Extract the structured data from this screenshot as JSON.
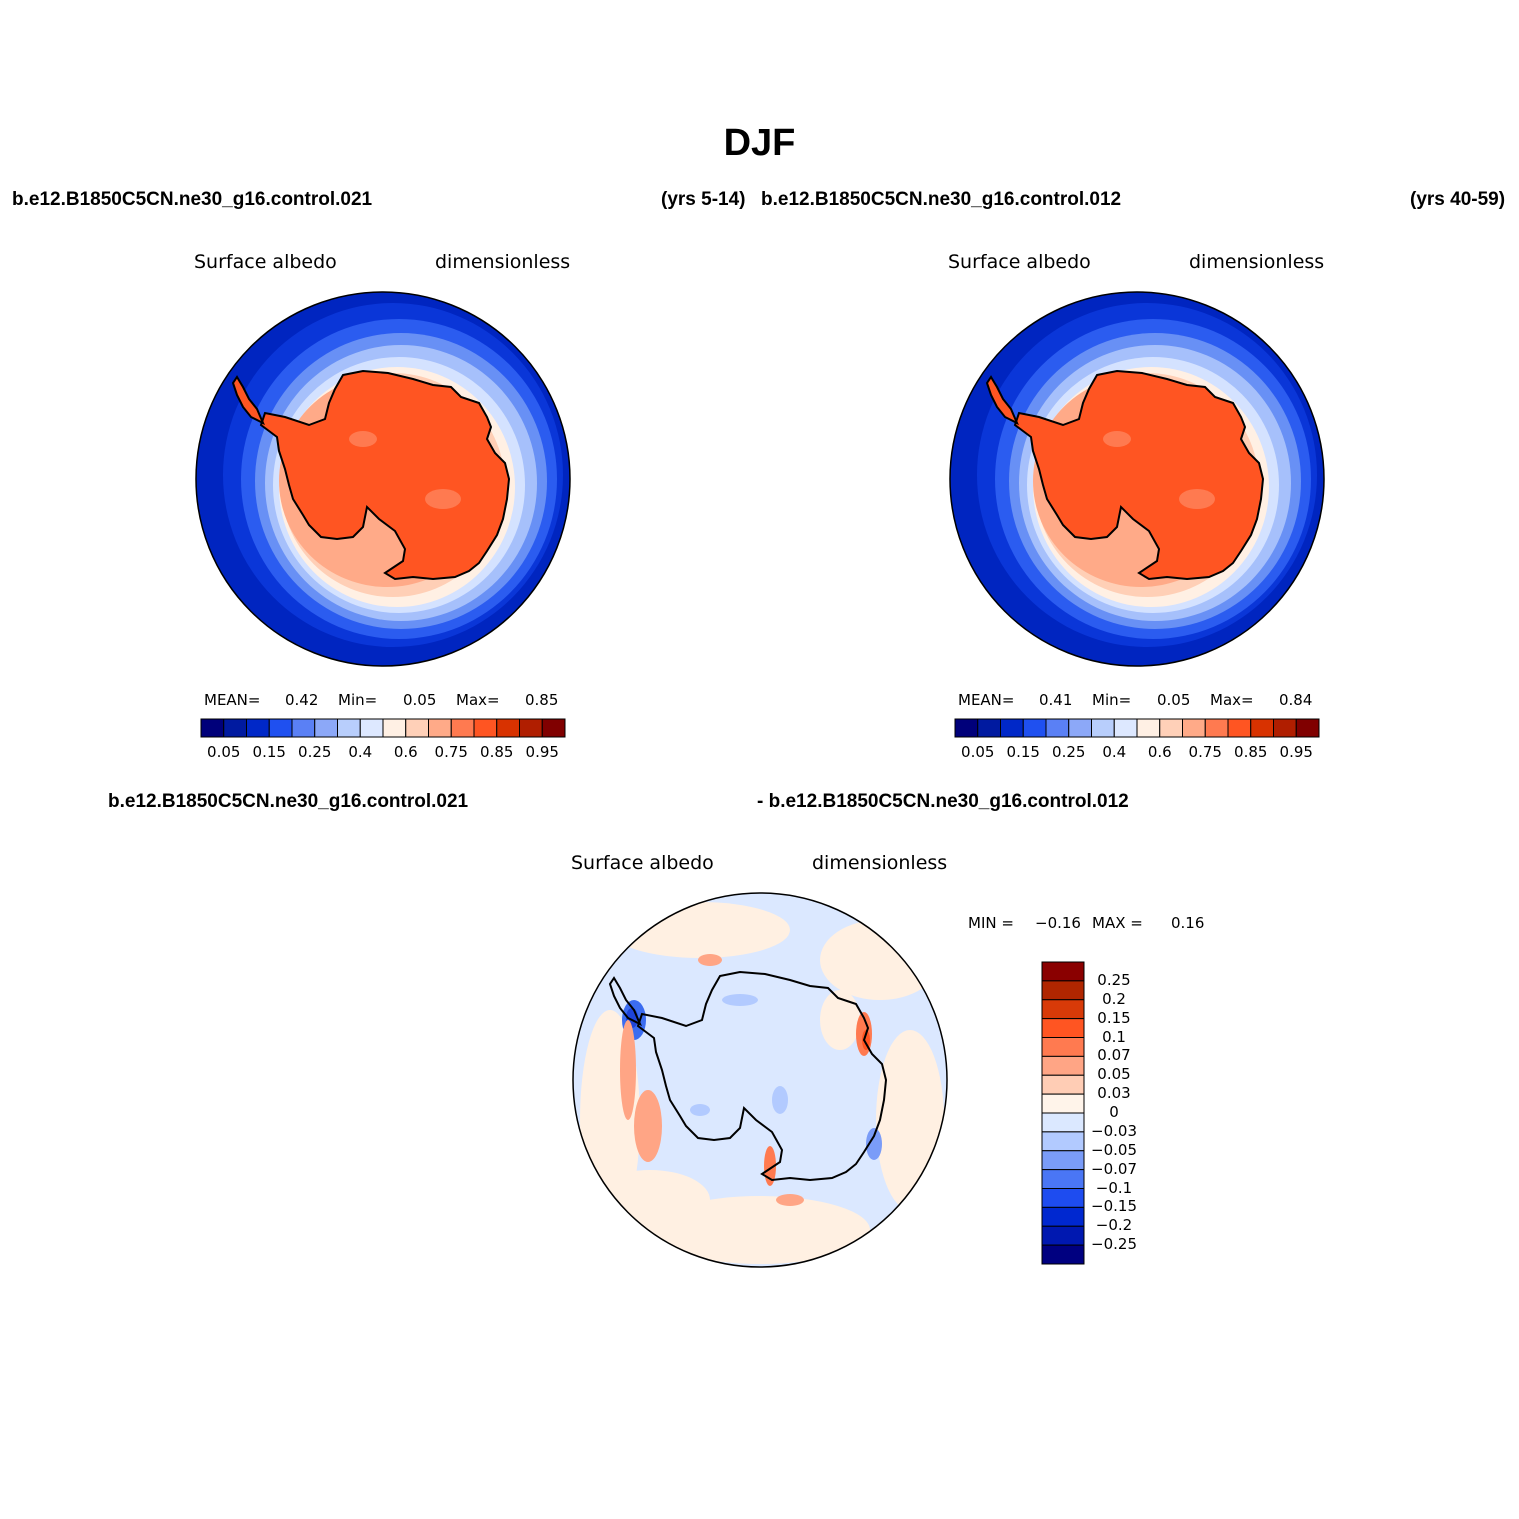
{
  "figure": {
    "title": "DJF",
    "top_left_case": "b.e12.B1850C5CN.ne30_g16.control.021",
    "top_left_years": "(yrs 5-14)",
    "top_right_case": "b.e12.B1850C5CN.ne30_g16.control.012",
    "top_right_years": "(yrs 40-59)",
    "diff_case_a": "b.e12.B1850C5CN.ne30_g16.control.021",
    "diff_case_b": "- b.e12.B1850C5CN.ne30_g16.control.012"
  },
  "panels": [
    {
      "variable": "Surface albedo",
      "units": "dimensionless",
      "mean_label": "MEAN=",
      "mean": "0.42",
      "min_label": "Min=",
      "min": "0.05",
      "max_label": "Max=",
      "max": "0.85"
    },
    {
      "variable": "Surface albedo",
      "units": "dimensionless",
      "mean_label": "MEAN=",
      "mean": "0.41",
      "min_label": "Min=",
      "min": "0.05",
      "max_label": "Max=",
      "max": "0.84"
    },
    {
      "variable": "Surface albedo",
      "units": "dimensionless",
      "min_label": "MIN =",
      "min": "−0.16",
      "max_label": "MAX =",
      "max": "0.16"
    }
  ],
  "colorbar_abs": {
    "colors": [
      "#00007a",
      "#001aa0",
      "#0028c8",
      "#1f50f0",
      "#5a80f5",
      "#8ca8f8",
      "#b8cefc",
      "#dde8ff",
      "#fff0e4",
      "#ffd0b8",
      "#ffaa88",
      "#ff7a50",
      "#ff5522",
      "#d83200",
      "#b01e00",
      "#800000"
    ],
    "tick_labels": [
      "0.05",
      "0.15",
      "0.25",
      "0.4",
      "0.6",
      "0.75",
      "0.85",
      "0.95"
    ]
  },
  "colorbar_diff": {
    "colors": [
      "#000080",
      "#0018b0",
      "#0028d0",
      "#1e4cf0",
      "#4a76f5",
      "#7a9cf8",
      "#b2caff",
      "#dbe8ff",
      "#fff4ea",
      "#ffcdb5",
      "#ffa585",
      "#ff7a50",
      "#ff5522",
      "#d83a08",
      "#b02600",
      "#8a0000"
    ],
    "tick_labels": [
      "0.25",
      "0.2",
      "0.15",
      "0.1",
      "0.07",
      "0.05",
      "0.03",
      "0",
      "−0.03",
      "−0.05",
      "−0.07",
      "−0.1",
      "−0.15",
      "−0.2",
      "−0.25"
    ]
  }
}
